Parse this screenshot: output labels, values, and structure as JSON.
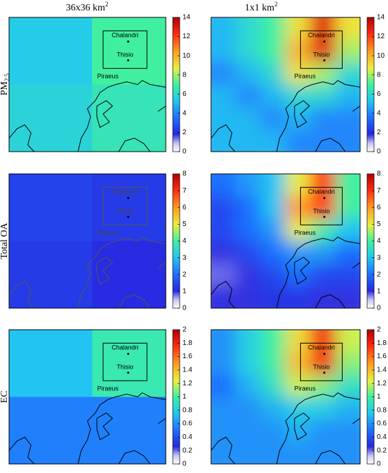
{
  "column_titles": [
    {
      "text": "36x36 km",
      "sup": "2"
    },
    {
      "text": "1x1 km",
      "sup": "2"
    }
  ],
  "row_labels": [
    {
      "text": "PM",
      "sub": "2.5"
    },
    {
      "text": "Total OA"
    },
    {
      "text": "EC"
    }
  ],
  "places": [
    "Chalandri",
    "Thisio",
    "Piraeus"
  ],
  "chart_data": [
    {
      "type": "heatmap",
      "zlim": [
        0,
        14
      ],
      "zticks": [
        0,
        2,
        4,
        6,
        8,
        10,
        12,
        14
      ],
      "values": [
        [
          5.5,
          7
        ],
        [
          5.8,
          6.5
        ]
      ]
    },
    {
      "type": "heatmap",
      "zlim": [
        0,
        14
      ],
      "zticks": [
        0,
        2,
        4,
        6,
        8,
        10,
        12,
        14
      ],
      "values": [
        [
          5,
          6,
          7,
          9,
          13,
          9
        ],
        [
          5,
          6,
          7,
          10,
          13,
          8
        ],
        [
          4,
          5,
          6,
          9,
          8,
          6
        ],
        [
          5,
          4,
          5,
          6,
          6,
          5
        ],
        [
          5,
          5,
          4,
          5,
          4,
          4
        ],
        [
          5,
          5,
          5,
          4,
          4,
          4
        ]
      ]
    },
    {
      "type": "heatmap",
      "zlim": [
        0,
        8
      ],
      "zticks": [
        0,
        1,
        2,
        3,
        4,
        5,
        6,
        7,
        8
      ],
      "values": [
        [
          1.4,
          1.3
        ],
        [
          1.3,
          1.1
        ]
      ]
    },
    {
      "type": "heatmap",
      "zlim": [
        0,
        8
      ],
      "zticks": [
        0,
        1,
        2,
        3,
        4,
        5,
        6,
        7,
        8
      ],
      "values": [
        [
          2,
          2.5,
          3,
          5,
          7,
          4
        ],
        [
          1.5,
          2,
          3,
          6,
          7,
          4
        ],
        [
          1.5,
          2,
          2.5,
          5,
          4,
          3
        ],
        [
          1,
          1.5,
          2,
          2.5,
          2.5,
          2
        ],
        [
          0.8,
          1,
          1.5,
          2,
          1.5,
          1.5
        ],
        [
          1,
          1,
          1.2,
          1.2,
          1,
          1
        ]
      ]
    },
    {
      "type": "heatmap",
      "zlim": [
        0,
        2
      ],
      "zticks": [
        0,
        0.2,
        0.4,
        0.6,
        0.8,
        1,
        1.2,
        1.4,
        1.6,
        1.8,
        2
      ],
      "values": [
        [
          0.75,
          0.95
        ],
        [
          0.55,
          0.55
        ]
      ]
    },
    {
      "type": "heatmap",
      "zlim": [
        0,
        2
      ],
      "zticks": [
        0,
        0.2,
        0.4,
        0.6,
        0.8,
        1,
        1.2,
        1.4,
        1.6,
        1.8,
        2
      ],
      "values": [
        [
          0.6,
          0.8,
          1,
          1.3,
          1.8,
          1.2
        ],
        [
          0.6,
          0.8,
          1,
          1.4,
          1.8,
          1.1
        ],
        [
          0.5,
          0.7,
          0.9,
          1.2,
          1.1,
          0.9
        ],
        [
          0.6,
          0.6,
          0.7,
          0.8,
          0.8,
          0.7
        ],
        [
          0.6,
          0.6,
          0.6,
          0.7,
          0.6,
          0.6
        ],
        [
          0.6,
          0.6,
          0.6,
          0.6,
          0.6,
          0.6
        ]
      ]
    }
  ]
}
